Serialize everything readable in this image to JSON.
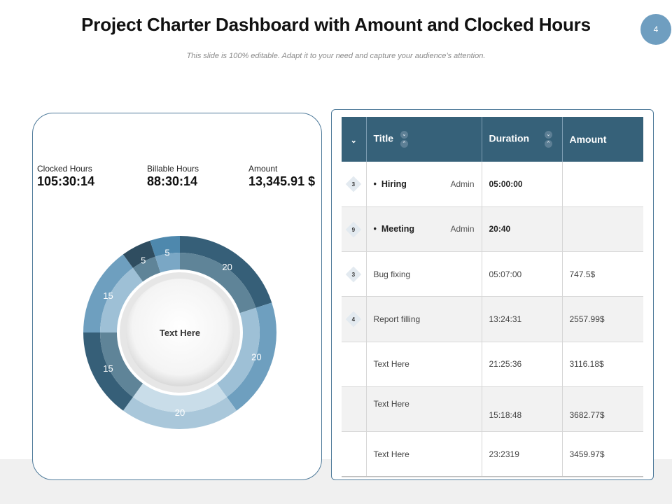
{
  "header": {
    "title": "Project Charter Dashboard with Amount and Clocked Hours",
    "subtitle": "This slide is 100% editable. Adapt it to your need and capture your audience’s attention.",
    "page_number": "4"
  },
  "stats": [
    {
      "label": "Clocked Hours",
      "value": "105:30:14"
    },
    {
      "label": "Billable Hours",
      "value": "88:30:14"
    },
    {
      "label": "Amount",
      "value": "13,345.91 $"
    }
  ],
  "chart_data": {
    "type": "pie",
    "variant": "donut",
    "center_label": "Text Here",
    "slices": [
      {
        "label": "20",
        "value": 20,
        "outer": "#365f78",
        "inner": "#5f8498"
      },
      {
        "label": "20",
        "value": 20,
        "outer": "#6e9fbf",
        "inner": "#9ec0d6"
      },
      {
        "label": "20",
        "value": 20,
        "outer": "#a9c7da",
        "inner": "#c9dde9"
      },
      {
        "label": "15",
        "value": 15,
        "outer": "#365f78",
        "inner": "#5f8498"
      },
      {
        "label": "15",
        "value": 15,
        "outer": "#6e9fbf",
        "inner": "#9ec0d6"
      },
      {
        "label": "5",
        "value": 5,
        "outer": "#2f4d60",
        "inner": "#5f8498"
      },
      {
        "label": "5",
        "value": 5,
        "outer": "#4e88ad",
        "inner": "#7aa7c5"
      }
    ]
  },
  "table": {
    "headers": {
      "title": "Title",
      "duration": "Duration",
      "amount": "Amount"
    },
    "rows": [
      {
        "badge": "3",
        "title": "Hiring",
        "role": "Admin",
        "duration": "05:00:00",
        "amount": "",
        "bullet": true
      },
      {
        "badge": "9",
        "title": "Meeting",
        "role": "Admin",
        "duration": "20:40",
        "amount": "",
        "bullet": true
      },
      {
        "badge": "3",
        "title": "Bug fixing",
        "role": "",
        "duration": "05:07:00",
        "amount": "747.5$",
        "bullet": false
      },
      {
        "badge": "4",
        "title": "Report filling",
        "role": "",
        "duration": "13:24:31",
        "amount": "2557.99$",
        "bullet": false
      },
      {
        "badge": "",
        "title": "Text Here",
        "role": "",
        "duration": "21:25:36",
        "amount": "3116.18$",
        "bullet": false
      },
      {
        "badge": "",
        "title": "Text Here",
        "role": "",
        "duration": "15:18:48",
        "amount": "3682.77$",
        "bullet": false
      },
      {
        "badge": "",
        "title": "Text Here",
        "role": "",
        "duration": "23:2319",
        "amount": "3459.97$",
        "bullet": false
      }
    ]
  }
}
